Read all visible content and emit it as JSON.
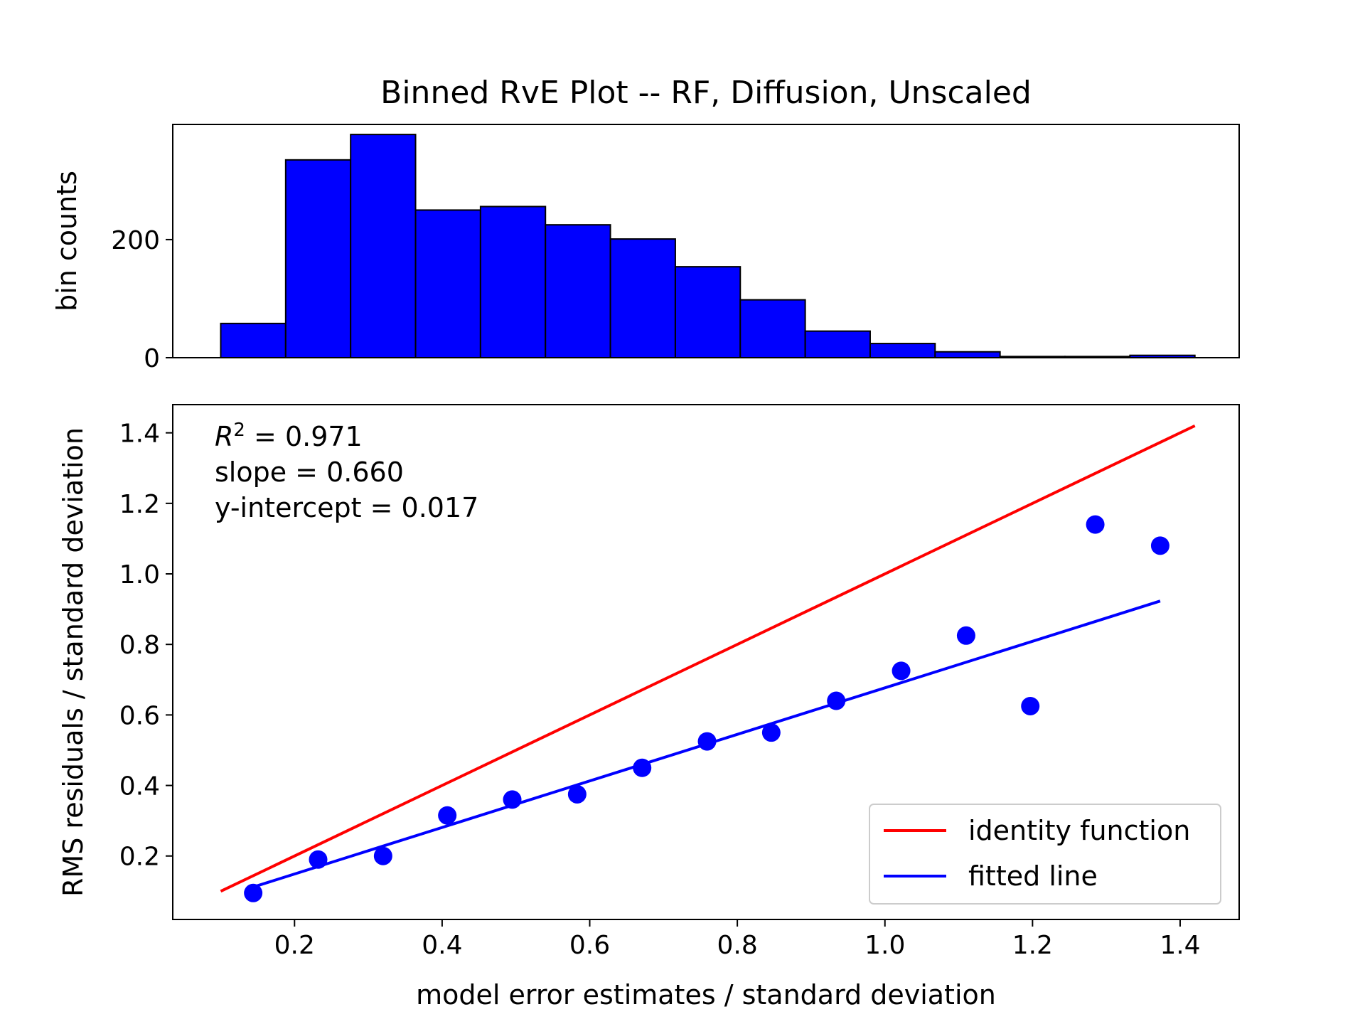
{
  "title": "Binned RvE Plot -- RF, Diffusion, Unscaled",
  "colors": {
    "bars": "#0000ff",
    "bar_edge": "#000000",
    "identity": "#ff0000",
    "fitted": "#0000ff",
    "points": "#0000ff"
  },
  "chart_data": [
    {
      "type": "bar",
      "role": "histogram",
      "ylabel": "bin counts",
      "xlabel": "",
      "xlim": [
        0.035,
        1.48
      ],
      "ylim": [
        0,
        395
      ],
      "yticks": [
        0,
        200
      ],
      "bin_edges": [
        0.1,
        0.188,
        0.276,
        0.364,
        0.452,
        0.54,
        0.628,
        0.716,
        0.804,
        0.892,
        0.98,
        1.068,
        1.156,
        1.244,
        1.332,
        1.42
      ],
      "values": [
        58,
        335,
        378,
        250,
        256,
        225,
        201,
        154,
        98,
        45,
        24,
        10,
        2,
        2,
        4
      ],
      "grid": false
    },
    {
      "type": "scatter",
      "role": "binned_rve",
      "xlabel": "model error estimates / standard deviation",
      "ylabel": "RMS residuals / standard deviation",
      "xlim": [
        0.035,
        1.48
      ],
      "ylim": [
        0.02,
        1.48
      ],
      "xticks": [
        0.2,
        0.4,
        0.6,
        0.8,
        1.0,
        1.2,
        1.4
      ],
      "yticks": [
        0.2,
        0.4,
        0.6,
        0.8,
        1.0,
        1.2,
        1.4
      ],
      "x_tick_labels": [
        "0.2",
        "0.4",
        "0.6",
        "0.8",
        "1.0",
        "1.2",
        "1.4"
      ],
      "y_tick_labels": [
        "0.2",
        "0.4",
        "0.6",
        "0.8",
        "1.0",
        "1.2",
        "1.4"
      ],
      "points": {
        "x": [
          0.144,
          0.232,
          0.32,
          0.407,
          0.495,
          0.583,
          0.671,
          0.759,
          0.846,
          0.934,
          1.022,
          1.11,
          1.197,
          1.285,
          1.373
        ],
        "y": [
          0.095,
          0.19,
          0.2,
          0.315,
          0.36,
          0.375,
          0.45,
          0.525,
          0.55,
          0.64,
          0.725,
          0.825,
          0.625,
          1.14,
          1.08
        ]
      },
      "series": [
        {
          "name": "identity function",
          "x": [
            0.1,
            1.42
          ],
          "y": [
            0.1,
            1.42
          ]
        },
        {
          "name": "fitted line",
          "x": [
            0.144,
            1.373
          ],
          "y": [
            0.112,
            0.923
          ]
        }
      ],
      "annotations": {
        "r2_prefix": "R",
        "r2_sup": "2",
        "r2_value": " = 0.971",
        "slope": "slope = 0.660",
        "intercept": "y-intercept = 0.017"
      },
      "legend_location": "lower-right",
      "grid": false
    }
  ]
}
